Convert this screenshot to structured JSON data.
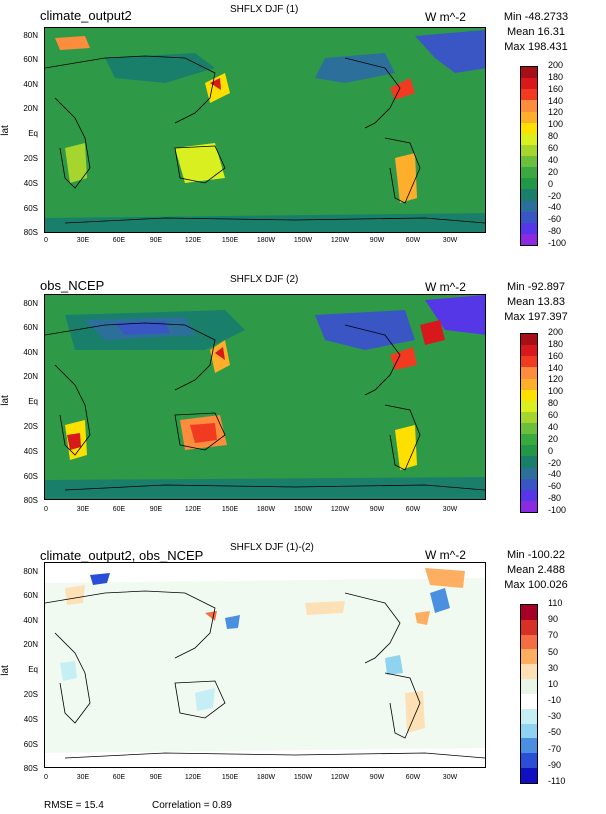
{
  "panels": [
    {
      "title": "climate_output2",
      "center_title": "SHFLX DJF (1)",
      "units": "W m^-2",
      "min": "Min -48.2733",
      "mean": "Mean 16.31",
      "max": "Max 198.431",
      "colorbar_labels": [
        "200",
        "180",
        "160",
        "140",
        "120",
        "100",
        "80",
        "60",
        "40",
        "20",
        "0",
        "-20",
        "-40",
        "-60",
        "-80",
        "-100"
      ],
      "colorbar_colors": [
        "#a50f15",
        "#d7191c",
        "#f03b20",
        "#fd8d3c",
        "#fdae2b",
        "#fee000",
        "#d9ef20",
        "#a6d62e",
        "#6cbf3a",
        "#3aa940",
        "#229847",
        "#1a7f6a",
        "#2b6f9a",
        "#3a56c5",
        "#5637e8",
        "#8a2be2"
      ]
    },
    {
      "title": "obs_NCEP",
      "center_title": "SHFLX DJF (2)",
      "units": "W m^-2",
      "min": "Min -92.897",
      "mean": "Mean 13.83",
      "max": "Max 197.397",
      "colorbar_labels": [
        "200",
        "180",
        "160",
        "140",
        "120",
        "100",
        "80",
        "60",
        "40",
        "20",
        "0",
        "-20",
        "-40",
        "-60",
        "-80",
        "-100"
      ],
      "colorbar_colors": [
        "#a50f15",
        "#d7191c",
        "#f03b20",
        "#fd8d3c",
        "#fdae2b",
        "#fee000",
        "#d9ef20",
        "#a6d62e",
        "#6cbf3a",
        "#3aa940",
        "#229847",
        "#1a7f6a",
        "#2b6f9a",
        "#3a56c5",
        "#5637e8",
        "#8a2be2"
      ]
    },
    {
      "title": "climate_output2, obs_NCEP",
      "center_title": "SHFLX DJF (1)-(2)",
      "units": "W m^-2",
      "min": "Min -100.22",
      "mean": "Mean 2.488",
      "max": "Max 100.026",
      "colorbar_labels": [
        "110",
        "90",
        "70",
        "50",
        "30",
        "10",
        "-10",
        "-30",
        "-50",
        "-70",
        "-90",
        "-110"
      ],
      "colorbar_colors": [
        "#a50026",
        "#d73027",
        "#f46d43",
        "#fdae61",
        "#fee0b6",
        "#e8f6e8",
        "#ffffff",
        "#c6eef5",
        "#8fd3f0",
        "#4a8fe0",
        "#2a4fd6",
        "#1010c0"
      ]
    }
  ],
  "axes": {
    "lat_label": "lat",
    "lat_ticks": [
      "80N",
      "60N",
      "40N",
      "20N",
      "Eq",
      "20S",
      "40S",
      "60S",
      "80S"
    ],
    "lon_ticks": [
      "0",
      "30E",
      "60E",
      "90E",
      "120E",
      "150E",
      "180W",
      "150W",
      "120W",
      "90W",
      "60W",
      "30W"
    ]
  },
  "footer": {
    "rmse": "RMSE = 15.4",
    "correlation": "Correlation = 0.89"
  },
  "colors": {
    "map_bg_1": "#2e9a48",
    "map_bg_2": "#2e9a48",
    "map_bg_3": "#ffffff",
    "coast": "#000000"
  }
}
